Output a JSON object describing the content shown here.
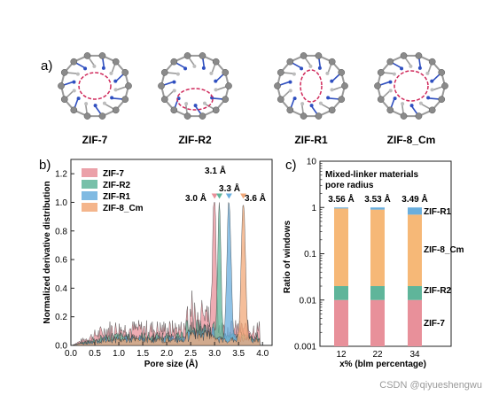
{
  "panel_labels": {
    "a": "a)",
    "b": "b)",
    "c": "c)"
  },
  "structures": [
    {
      "label": "ZIF-7"
    },
    {
      "label": "ZIF-R2"
    },
    {
      "label": "ZIF-R1"
    },
    {
      "label": "ZIF-8_Cm"
    }
  ],
  "colors": {
    "zif7": "#e8909a",
    "zifr2": "#5fb59a",
    "zifr1": "#6aaedd",
    "zif8cm": "#f2a878",
    "orange_bar": "#f6b877",
    "atom_c": "#8a8a8a",
    "atom_n": "#2f4fc0",
    "pore_dash": "#d02a5c"
  },
  "chart_data": [
    {
      "type": "area",
      "panel": "b)",
      "xlabel": "Pore size (Å)",
      "ylabel": "Normalized derivative distribution",
      "xlim": [
        0.0,
        4.2
      ],
      "ylim": [
        0.0,
        1.3
      ],
      "x_ticks": [
        "0.0",
        "0.5",
        "1.0",
        "1.5",
        "2.0",
        "2.5",
        "3.0",
        "3.5",
        "4.0"
      ],
      "y_ticks": [
        "0.0",
        "0.2",
        "0.4",
        "0.6",
        "0.8",
        "1.0",
        "1.2"
      ],
      "legend": [
        "ZIF-7",
        "ZIF-R2",
        "ZIF-R1",
        "ZIF-8_Cm"
      ],
      "legend_position": "top-left",
      "peaks": [
        {
          "series": "ZIF-7",
          "x": 3.0,
          "label": "3.0 Å",
          "y": 1.0
        },
        {
          "series": "ZIF-R2",
          "x": 3.1,
          "label": "3.1 Å",
          "y": 1.0
        },
        {
          "series": "ZIF-R1",
          "x": 3.3,
          "label": "3.3 Å",
          "y": 1.0
        },
        {
          "series": "ZIF-8_Cm",
          "x": 3.6,
          "label": "3.6 Å",
          "y": 1.0
        }
      ],
      "series": [
        {
          "name": "ZIF-7",
          "baseline": 0.15,
          "peak_x": 3.0,
          "peak_width": 0.045
        },
        {
          "name": "ZIF-R2",
          "baseline": 0.08,
          "peak_x": 3.1,
          "peak_width": 0.045
        },
        {
          "name": "ZIF-R1",
          "baseline": 0.06,
          "peak_x": 3.3,
          "peak_width": 0.06
        },
        {
          "name": "ZIF-8_Cm",
          "baseline": 0.05,
          "peak_x": 3.6,
          "peak_width": 0.06
        }
      ]
    },
    {
      "type": "bar",
      "panel": "c)",
      "title": "Mixed-linker materials pore radius",
      "title_lines": [
        "Mixed-linker materials",
        "pore radius"
      ],
      "xlabel": "x% (blm percentage)",
      "ylabel": "Ratio of windows",
      "y_scale": "log",
      "ylim": [
        0.001,
        10
      ],
      "y_ticks": [
        "0.001",
        "0.01",
        "0.1",
        "1",
        "10"
      ],
      "categories": [
        "12",
        "22",
        "34"
      ],
      "top_labels": [
        "3.56 Å",
        "3.53 Å",
        "3.49 Å"
      ],
      "stack_tops": [
        {
          "ZIF-7": 0.01,
          "ZIF-R2": 0.02,
          "ZIF-8_Cm": 0.95,
          "ZIF-R1": 1.0
        },
        {
          "ZIF-7": 0.01,
          "ZIF-R2": 0.02,
          "ZIF-8_Cm": 0.9,
          "ZIF-R1": 1.0
        },
        {
          "ZIF-7": 0.01,
          "ZIF-R2": 0.02,
          "ZIF-8_Cm": 0.7,
          "ZIF-R1": 1.0
        }
      ],
      "segment_labels": [
        "ZIF-R1",
        "ZIF-8_Cm",
        "ZIF-R2",
        "ZIF-7"
      ]
    }
  ],
  "watermark": "CSDN @qiyueshengwu"
}
